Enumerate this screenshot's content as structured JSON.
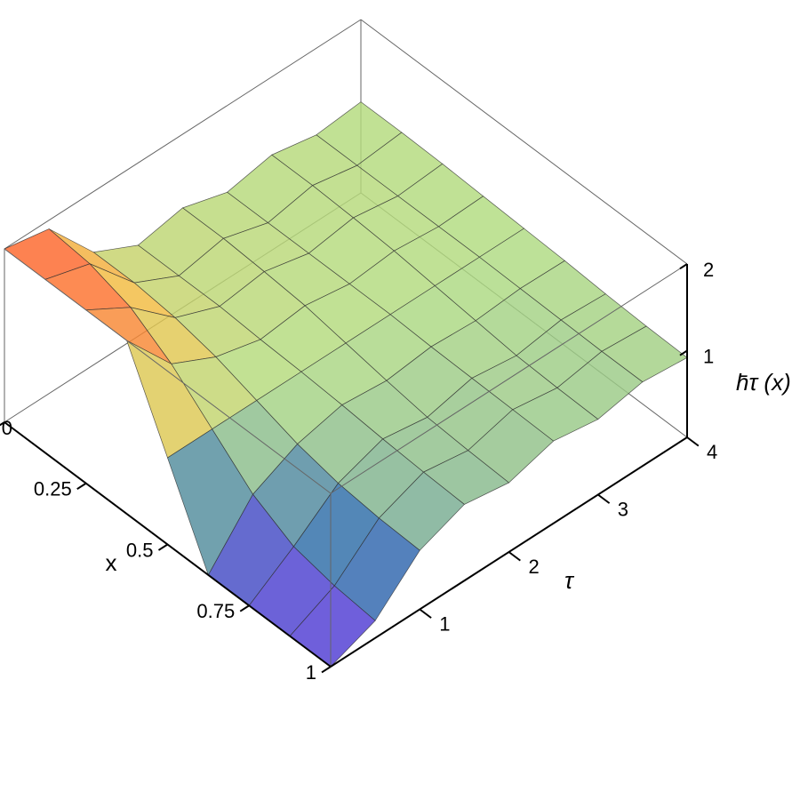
{
  "chart_data": {
    "type": "surface3d",
    "xlabel": "x",
    "ylabel": "τ",
    "zlabel": "h̄τ (x)",
    "x": [
      0,
      0.125,
      0.25,
      0.375,
      0.5,
      0.625,
      0.75,
      0.875,
      1
    ],
    "y": [
      0,
      0.5,
      1,
      1.5,
      2,
      2.5,
      3,
      3.5,
      4
    ],
    "z": [
      [
        2,
        2,
        2,
        2,
        1,
        0,
        0,
        0,
        0
      ],
      [
        1.9,
        1.85,
        1.7,
        1.4,
        1.0,
        0.6,
        0.35,
        0.25,
        0.2
      ],
      [
        1.3,
        1.3,
        1.25,
        1.15,
        1.0,
        0.85,
        0.75,
        0.7,
        0.68
      ],
      [
        1.05,
        1.05,
        1.05,
        1.02,
        1.0,
        0.97,
        0.93,
        0.9,
        0.88
      ],
      [
        1.15,
        1.15,
        1.12,
        1.08,
        1.0,
        0.92,
        0.85,
        0.82,
        0.8
      ],
      [
        1.0,
        1.0,
        1.0,
        1.0,
        1.0,
        0.98,
        0.97,
        0.96,
        0.95
      ],
      [
        1.1,
        1.1,
        1.08,
        1.05,
        1.0,
        0.95,
        0.9,
        0.88,
        0.87
      ],
      [
        1.0,
        1.0,
        1.0,
        1.0,
        1.0,
        0.99,
        0.98,
        0.97,
        0.97
      ],
      [
        1.05,
        1.05,
        1.04,
        1.02,
        1.0,
        0.98,
        0.95,
        0.93,
        0.92
      ]
    ],
    "xlim": [
      0,
      1
    ],
    "ylim": [
      0,
      4
    ],
    "zlim": [
      0,
      2
    ],
    "xticks": [
      0,
      0.25,
      0.5,
      0.75,
      1
    ],
    "yticks": [
      1,
      2,
      3,
      4
    ],
    "zticks": [
      1,
      2
    ],
    "colormap": [
      "#5a2ee0",
      "#2a6aa8",
      "#b0dc80",
      "#f0c040",
      "#ff5a28"
    ]
  }
}
